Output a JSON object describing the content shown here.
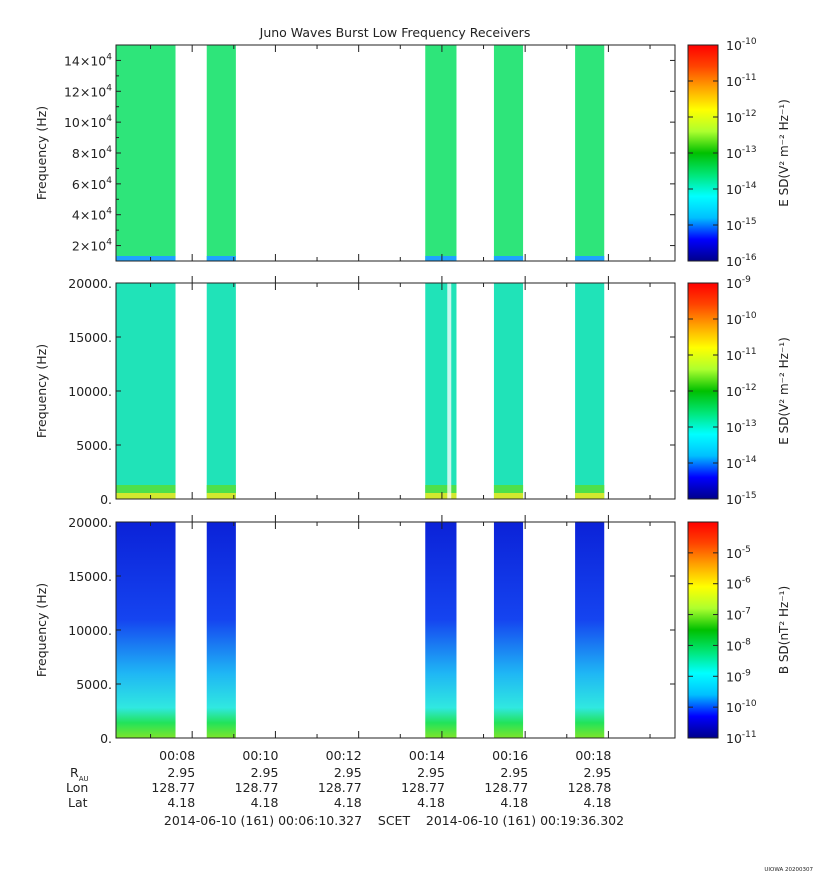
{
  "title": "Juno Waves Burst Low Frequency Receivers",
  "footer": {
    "start": "2014-06-10 (161) 00:06:10.327",
    "scet": "SCET",
    "end": "2014-06-10 (161) 00:19:36.302",
    "stamp": "UIOWA 20200307"
  },
  "ephemeris": {
    "labels": [
      "R_AU",
      "Lon",
      "Lat"
    ],
    "times": [
      "00:08",
      "00:10",
      "00:12",
      "00:14",
      "00:16",
      "00:18"
    ],
    "r_au": [
      "2.95",
      "2.95",
      "2.95",
      "2.95",
      "2.95",
      "2.95"
    ],
    "lon": [
      "128.77",
      "128.77",
      "128.77",
      "128.77",
      "128.77",
      "128.78"
    ],
    "lat": [
      "4.18",
      "4.18",
      "4.18",
      "4.18",
      "4.18",
      "4.18"
    ]
  },
  "colors": {
    "colormap": [
      "#00008b",
      "#0000ff",
      "#00bfff",
      "#00ffff",
      "#00e676",
      "#00c000",
      "#adff2f",
      "#ffff00",
      "#ffa500",
      "#ff4500",
      "#ff0000"
    ]
  },
  "chart_data": [
    {
      "type": "heatmap",
      "panel": "top",
      "ylabel": "Frequency (Hz)",
      "ylim": [
        10000,
        150000
      ],
      "ytick_mantissa": [
        "2×10",
        "4×10",
        "6×10",
        "8×10",
        "10×10",
        "12×10",
        "14×10"
      ],
      "ytick_values": [
        20000,
        40000,
        60000,
        80000,
        100000,
        120000,
        140000
      ],
      "colorbar_label": "E SD(V² m⁻² Hz⁻¹)",
      "colorbar_log_range": [
        -16,
        -10
      ],
      "colorbar_ticks": [
        "10^-10",
        "10^-11",
        "10^-12",
        "10^-13",
        "10^-14",
        "10^-15",
        "10^-16"
      ],
      "xlim_minutes": [
        6.17,
        19.6
      ],
      "data_intervals": [
        [
          6.17,
          7.6
        ],
        [
          8.35,
          9.05
        ],
        [
          13.6,
          14.35
        ],
        [
          15.25,
          15.95
        ],
        [
          17.2,
          17.9
        ]
      ],
      "intensity": "≈1e-13.6 (green), blue streak near 10 kHz"
    },
    {
      "type": "heatmap",
      "panel": "middle",
      "ylabel": "Frequency (Hz)",
      "ylim": [
        0,
        20000
      ],
      "ytick_labels": [
        "0.",
        "5000.",
        "10000.",
        "15000.",
        "20000."
      ],
      "ytick_values": [
        0,
        5000,
        10000,
        15000,
        20000
      ],
      "colorbar_label": "E SD(V² m⁻² Hz⁻¹)",
      "colorbar_log_range": [
        -15,
        -9
      ],
      "colorbar_ticks": [
        "10^-9",
        "10^-10",
        "10^-11",
        "10^-12",
        "10^-13",
        "10^-14",
        "10^-15"
      ],
      "data_intervals": [
        [
          6.17,
          7.6
        ],
        [
          8.35,
          9.05
        ],
        [
          13.6,
          14.35
        ],
        [
          15.25,
          15.95
        ],
        [
          17.2,
          17.9
        ]
      ],
      "intensity": "≈1e-13 (cyan), enhanced below ~500 Hz"
    },
    {
      "type": "heatmap",
      "panel": "bottom",
      "ylabel": "Frequency (Hz)",
      "ylim": [
        0,
        20000
      ],
      "ytick_labels": [
        "0.",
        "5000.",
        "10000.",
        "15000.",
        "20000."
      ],
      "ytick_values": [
        0,
        5000,
        10000,
        15000,
        20000
      ],
      "colorbar_label": "B SD(nT² Hz⁻¹)",
      "colorbar_log_range": [
        -11,
        -4
      ],
      "colorbar_ticks": [
        "10^-5",
        "10^-6",
        "10^-7",
        "10^-8",
        "10^-9",
        "10^-10",
        "10^-11"
      ],
      "data_intervals": [
        [
          6.17,
          7.6
        ],
        [
          8.35,
          9.05
        ],
        [
          13.6,
          14.35
        ],
        [
          15.25,
          15.95
        ],
        [
          17.2,
          17.9
        ]
      ],
      "intensity": "≈1e-10 at high freq rising to ≈1e-8 below 1 kHz"
    }
  ]
}
